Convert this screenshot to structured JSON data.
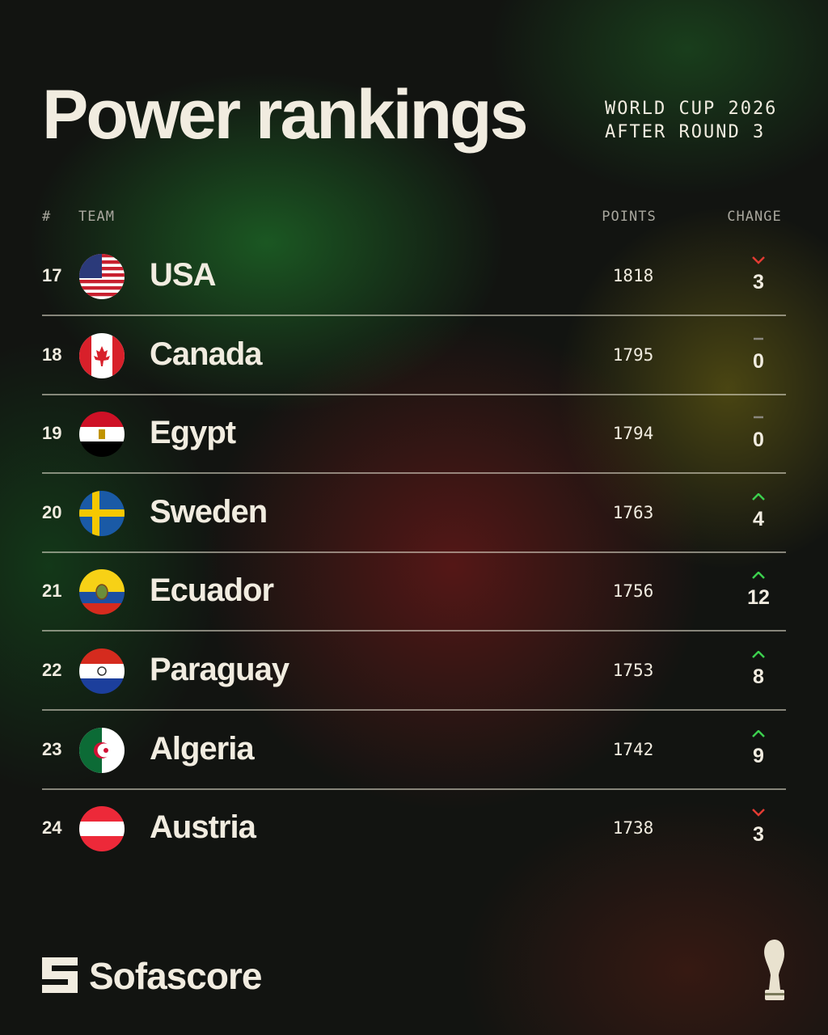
{
  "header": {
    "title": "Power rankings",
    "subtitle": [
      "WORLD CUP 2026",
      "AFTER ROUND 3"
    ]
  },
  "table": {
    "columns": [
      "#",
      "TEAM",
      "POINTS",
      "CHANGE"
    ],
    "rows": [
      {
        "rank": 17,
        "team": "USA",
        "points": 1818,
        "change": 3,
        "direction": "down"
      },
      {
        "rank": 18,
        "team": "Canada",
        "points": 1795,
        "change": 0,
        "direction": "none"
      },
      {
        "rank": 19,
        "team": "Egypt",
        "points": 1794,
        "change": 0,
        "direction": "none"
      },
      {
        "rank": 20,
        "team": "Sweden",
        "points": 1763,
        "change": 4,
        "direction": "up"
      },
      {
        "rank": 21,
        "team": "Ecuador",
        "points": 1756,
        "change": 12,
        "direction": "up"
      },
      {
        "rank": 22,
        "team": "Paraguay",
        "points": 1753,
        "change": 8,
        "direction": "up"
      },
      {
        "rank": 23,
        "team": "Algeria",
        "points": 1742,
        "change": 9,
        "direction": "up"
      },
      {
        "rank": 24,
        "team": "Austria",
        "points": 1738,
        "change": 3,
        "direction": "down"
      }
    ]
  },
  "footer": {
    "brand": "Sofascore"
  }
}
